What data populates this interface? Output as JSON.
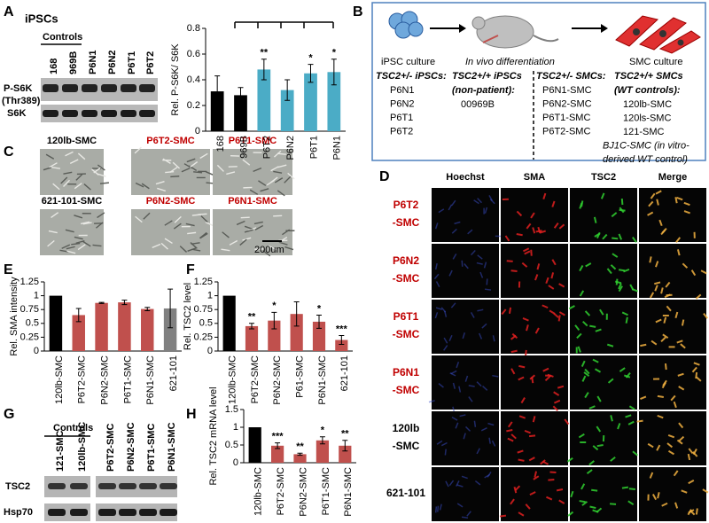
{
  "panel_labels": [
    "A",
    "B",
    "C",
    "D",
    "E",
    "F",
    "G",
    "H"
  ],
  "panel_a": {
    "title": "iPSCs",
    "group_label": "Controls",
    "lanes": [
      "168",
      "969B",
      "P6N1",
      "P6N2",
      "P6T1",
      "P6T2"
    ],
    "rows": [
      "P-S6K",
      "(Thr389)",
      "S6K"
    ]
  },
  "panel_b": {
    "steps": [
      "iPSC culture",
      "In vivo differentiation",
      "SMC culture"
    ],
    "columns": [
      {
        "header": [
          "TSC2+/- iPSCs:"
        ],
        "items": [
          "P6N1",
          "P6N2",
          "P6T1",
          "P6T2"
        ]
      },
      {
        "header": [
          "TSC2+/+ iPSCs",
          "(non-patient):"
        ],
        "items": [
          "00969B"
        ]
      },
      {
        "header": [
          "TSC2+/- SMCs:"
        ],
        "items": [
          "P6N1-SMC",
          "P6N2-SMC",
          "P6T1-SMC",
          "P6T2-SMC"
        ]
      },
      {
        "header": [
          "TSC2+/+ SMCs",
          "(WT controls):"
        ],
        "items": [
          "120lb-SMC",
          "120ls-SMC",
          "121-SMC",
          "BJ1C-SMC (in vitro-",
          "derived WT control)"
        ]
      }
    ]
  },
  "panel_c": {
    "images": [
      "120lb-SMC",
      "P6T2-SMC",
      "P6T1-SMC",
      "621-101-SMC",
      "P6N2-SMC",
      "P6N1-SMC"
    ],
    "scale_bar": "200um"
  },
  "panel_d": {
    "columns": [
      "Hoechst",
      "SMA",
      "TSC2",
      "Merge"
    ],
    "rows": [
      [
        "P6T2",
        "-SMC"
      ],
      [
        "P6N2",
        "-SMC"
      ],
      [
        "P6T1",
        "-SMC"
      ],
      [
        "P6N1",
        "-SMC"
      ],
      [
        "120lb",
        "-SMC"
      ],
      [
        "621-101"
      ]
    ]
  },
  "panel_g": {
    "group_label": "Controls",
    "lanes": [
      "121-SMC",
      "120lb-SMC",
      "P6T2-SMC",
      "P6N2-SMC",
      "P6T1-SMC",
      "P6N1-SMC"
    ],
    "rows": [
      "TSC2",
      "Hsp70"
    ]
  },
  "chart_data": [
    {
      "type": "bar",
      "y_label": "Rel. P-S6K/ S6K",
      "categories": [
        "168",
        "969B",
        "P6T2",
        "P6N2",
        "P6T1",
        "P6N1"
      ],
      "values": [
        0.31,
        0.28,
        0.48,
        0.32,
        0.45,
        0.46
      ],
      "errors": [
        0.12,
        0.06,
        0.08,
        0.08,
        0.07,
        0.1
      ],
      "colors": [
        "#000000",
        "#000000",
        "#4bacc6",
        "#4bacc6",
        "#4bacc6",
        "#4bacc6"
      ],
      "significance": [
        null,
        null,
        "**",
        null,
        "*",
        "*"
      ],
      "ylim": [
        0,
        0.8
      ],
      "yticks": [
        0,
        0.2,
        0.4,
        0.6,
        0.8
      ]
    },
    {
      "type": "bar",
      "y_label": "Rel. SMA intensity",
      "categories": [
        "120lb-SMC",
        "P6T2-SMC",
        "P6N2-SMC",
        "P6T1-SMC",
        "P6N1-SMC",
        "621-101"
      ],
      "values": [
        1,
        0.65,
        0.87,
        0.88,
        0.76,
        0.77
      ],
      "errors": [
        0,
        0.12,
        0.01,
        0.04,
        0.03,
        0.35
      ],
      "colors": [
        "#000000",
        "#c0504d",
        "#c0504d",
        "#c0504d",
        "#c0504d",
        "#808080"
      ],
      "significance": [
        null,
        null,
        null,
        null,
        null,
        null
      ],
      "ylim": [
        0,
        1.25
      ],
      "yticks": [
        0,
        0.25,
        0.5,
        0.75,
        1,
        1.25
      ]
    },
    {
      "type": "bar",
      "y_label": "Rel. TSC2 level",
      "categories": [
        "120lb-SMC",
        "P6T2-SMC",
        "P6N2-SMC",
        "P61-SMC",
        "P6N1-SMC",
        "621-101"
      ],
      "values": [
        1,
        0.45,
        0.55,
        0.67,
        0.53,
        0.2
      ],
      "errors": [
        0,
        0.05,
        0.15,
        0.22,
        0.12,
        0.08
      ],
      "colors": [
        "#000000",
        "#c0504d",
        "#c0504d",
        "#c0504d",
        "#c0504d",
        "#c0504d"
      ],
      "significance": [
        null,
        "**",
        "*",
        null,
        "*",
        "***"
      ],
      "ylim": [
        0,
        1.25
      ],
      "yticks": [
        0,
        0.25,
        0.5,
        0.75,
        1,
        1.25
      ]
    },
    {
      "type": "bar",
      "y_label": "Rel. TSC2 mRNA level",
      "categories": [
        "120lb-SMC",
        "P6T2-SMC",
        "P6N2-SMC",
        "P6T1-SMC",
        "P6N1-SMC"
      ],
      "values": [
        1,
        0.48,
        0.24,
        0.63,
        0.48
      ],
      "errors": [
        0,
        0.08,
        0.03,
        0.1,
        0.15
      ],
      "colors": [
        "#000000",
        "#c0504d",
        "#c0504d",
        "#c0504d",
        "#c0504d"
      ],
      "significance": [
        null,
        "***",
        "**",
        "*",
        "**"
      ],
      "ylim": [
        0,
        1.5
      ],
      "yticks": [
        0,
        0.5,
        1,
        1.5
      ]
    }
  ]
}
